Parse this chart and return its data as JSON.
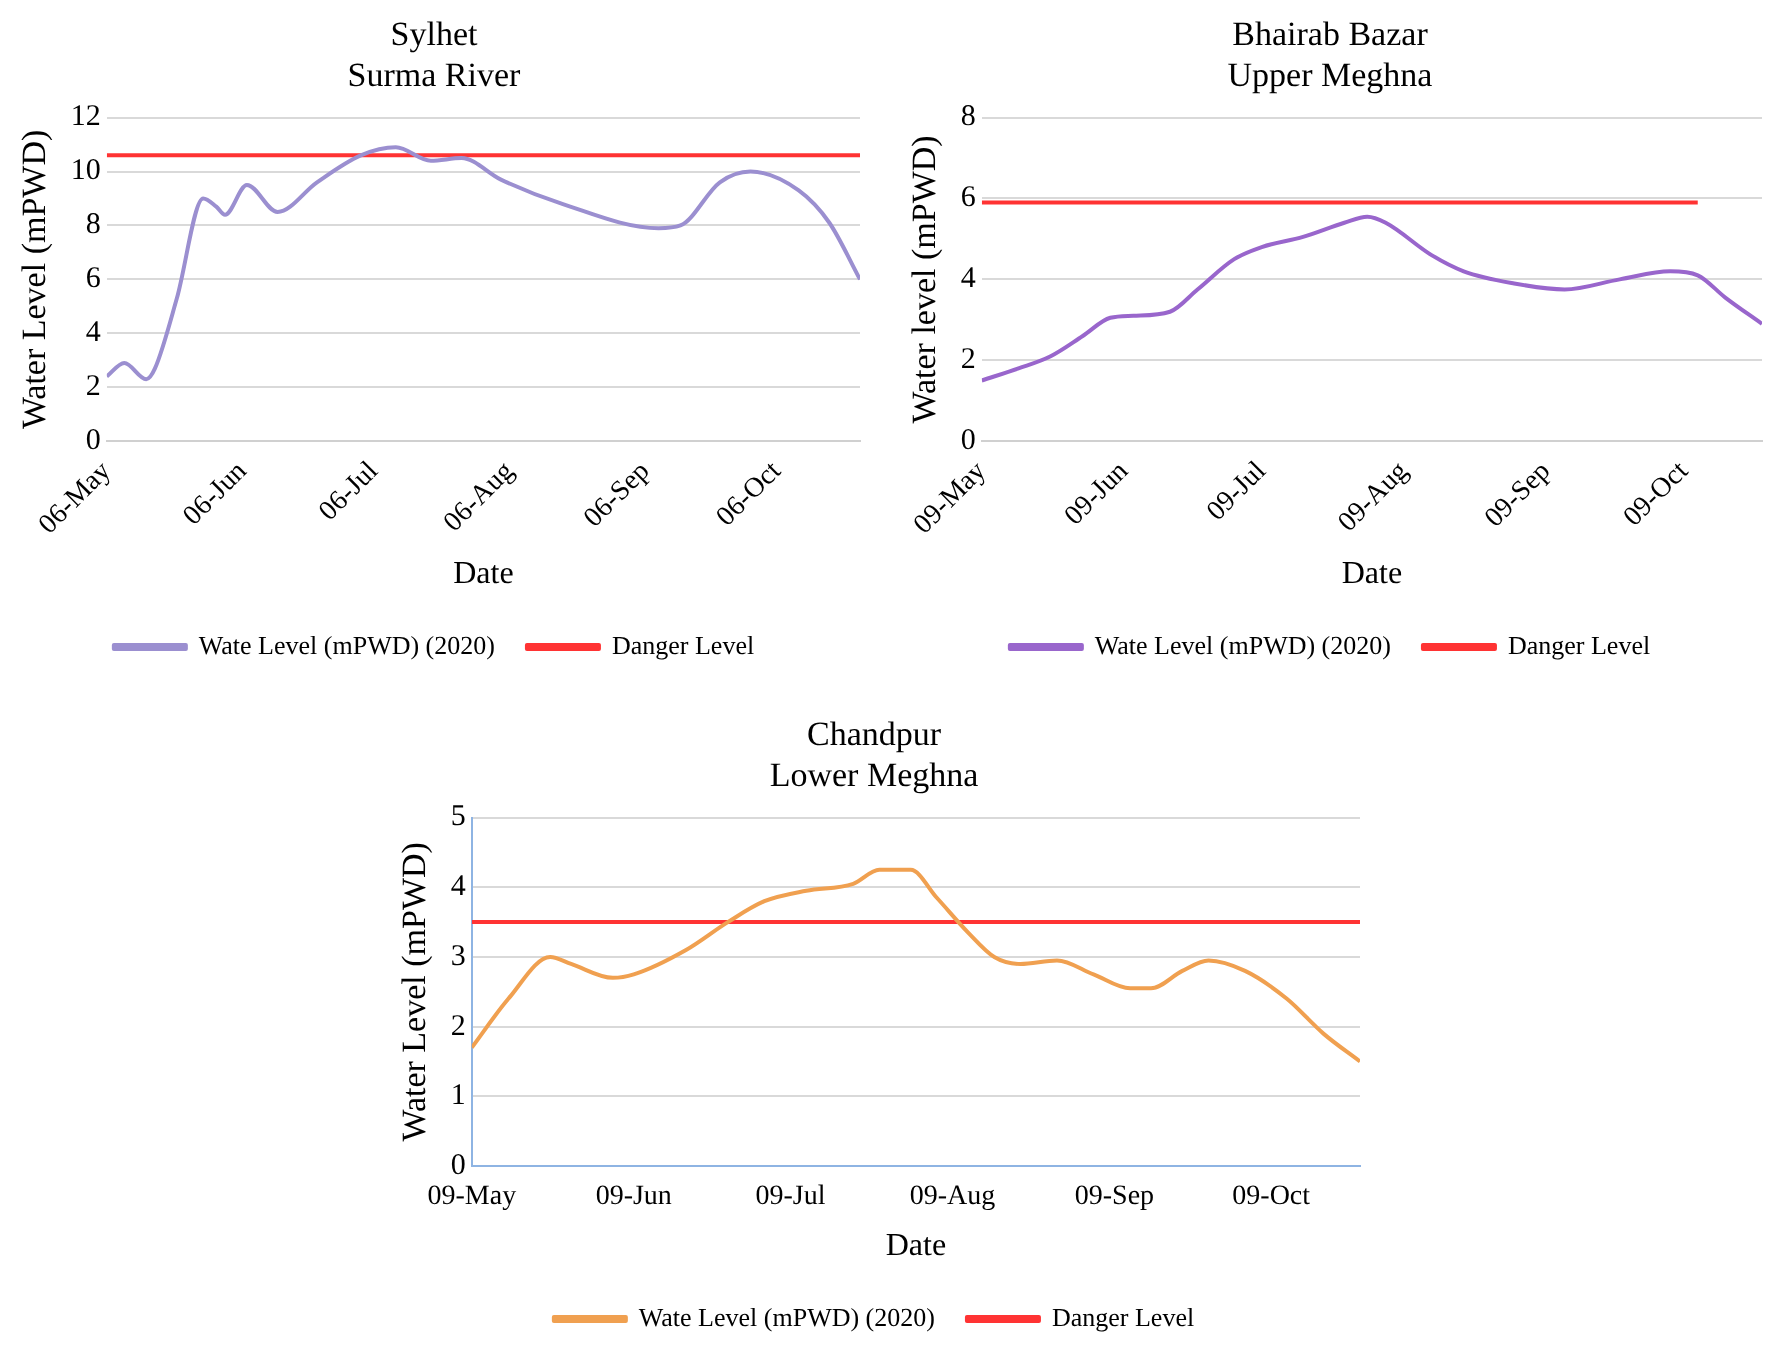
{
  "chart_data": [
    {
      "type": "line",
      "title": "Sylhet",
      "subtitle": "Surma River",
      "xlabel": "Date",
      "ylabel": "Water Level (mPWD)",
      "xlim": [
        "--05-06",
        "--10-25"
      ],
      "xticks": [
        {
          "value": "--05-06",
          "label": "06-May"
        },
        {
          "value": "--06-06",
          "label": "06-Jun"
        },
        {
          "value": "--07-06",
          "label": "06-Jul"
        },
        {
          "value": "--08-06",
          "label": "06-Aug"
        },
        {
          "value": "--09-06",
          "label": "06-Sep"
        },
        {
          "value": "--10-06",
          "label": "06-Oct"
        }
      ],
      "ylim": [
        0,
        12
      ],
      "yticks": [
        0,
        2,
        4,
        6,
        8,
        10,
        12
      ],
      "grid": "y",
      "legend": "bottom",
      "marker": "none",
      "line_style": "solid",
      "series": [
        {
          "name": "Wate Level (mPWD) (2020)",
          "color": "#9b8fd0",
          "x": [
            "--05-06",
            "--05-10",
            "--05-15",
            "--05-17",
            "--05-22",
            "--05-28",
            "--05-31",
            "--06-02",
            "--06-07",
            "--06-14",
            "--06-23",
            "--07-03",
            "--07-11",
            "--07-19",
            "--07-26",
            "--08-04",
            "--08-18",
            "--09-09",
            "--09-14",
            "--09-23",
            "--09-30",
            "--10-11",
            "--10-18",
            "--10-25"
          ],
          "values": [
            2.4,
            2.9,
            2.3,
            2.7,
            5.3,
            9.0,
            8.7,
            8.4,
            9.5,
            8.5,
            9.6,
            10.6,
            10.9,
            10.4,
            10.5,
            9.7,
            8.8,
            7.9,
            8.0,
            9.6,
            10.0,
            9.3,
            8.1,
            6.0
          ]
        },
        {
          "name": "Danger Level",
          "color": "#ff3333",
          "x": [
            "--05-06",
            "--10-25"
          ],
          "values": [
            10.6,
            10.6
          ]
        }
      ]
    },
    {
      "type": "line",
      "title": "Bhairab Bazar",
      "subtitle": "Upper Meghna",
      "xlabel": "Date",
      "ylabel": "Water level (mPWD)",
      "xlim": [
        "--05-09",
        "--10-26"
      ],
      "xticks": [
        {
          "value": "--05-09",
          "label": "09-May"
        },
        {
          "value": "--06-09",
          "label": "09-Jun"
        },
        {
          "value": "--07-09",
          "label": "09-Jul"
        },
        {
          "value": "--08-09",
          "label": "09-Aug"
        },
        {
          "value": "--09-09",
          "label": "09-Sep"
        },
        {
          "value": "--10-09",
          "label": "09-Oct"
        }
      ],
      "ylim": [
        0,
        8
      ],
      "yticks": [
        0,
        2,
        4,
        6,
        8
      ],
      "grid": "y",
      "legend": "bottom",
      "marker": "none",
      "line_style": "solid",
      "series": [
        {
          "name": "Wate Level (mPWD) (2020)",
          "color": "#9966cc",
          "x": [
            "--05-09",
            "--05-17",
            "--05-24",
            "--05-31",
            "--06-06",
            "--06-11",
            "--06-19",
            "--06-25",
            "--07-03",
            "--07-09",
            "--07-18",
            "--07-27",
            "--08-01",
            "--08-05",
            "--08-15",
            "--08-22",
            "--09-02",
            "--09-13",
            "--09-25",
            "--10-06",
            "--10-12",
            "--10-18",
            "--10-26"
          ],
          "values": [
            1.5,
            1.8,
            2.1,
            2.6,
            3.05,
            3.1,
            3.2,
            3.75,
            4.5,
            4.8,
            5.05,
            5.4,
            5.55,
            5.4,
            4.6,
            4.2,
            3.9,
            3.75,
            4.0,
            4.2,
            4.1,
            3.55,
            2.9
          ]
        },
        {
          "name": "Danger Level",
          "color": "#ff3333",
          "x": [
            "--05-09",
            "--10-12"
          ],
          "values": [
            5.9,
            5.9
          ]
        }
      ]
    },
    {
      "type": "line",
      "title": "Chandpur",
      "subtitle": "Lower Meghna",
      "xlabel": "Date",
      "ylabel": "Water Level (mPWD)",
      "xlim": [
        "--05-09",
        "--10-26"
      ],
      "xticks": [
        {
          "value": "--05-09",
          "label": "09-May"
        },
        {
          "value": "--06-09",
          "label": "09-Jun"
        },
        {
          "value": "--07-09",
          "label": "09-Jul"
        },
        {
          "value": "--08-09",
          "label": "09-Aug"
        },
        {
          "value": "--09-09",
          "label": "09-Sep"
        },
        {
          "value": "--10-09",
          "label": "09-Oct"
        }
      ],
      "ylim": [
        0,
        5
      ],
      "yticks": [
        0,
        1,
        2,
        3,
        4,
        5
      ],
      "grid": "y",
      "legend": "bottom",
      "marker": "none",
      "line_style": "solid",
      "series": [
        {
          "name": "Wate Level (mPWD) (2020)",
          "color": "#f0a050",
          "x": [
            "--05-09",
            "--05-16",
            "--05-24",
            "--05-28",
            "--06-05",
            "--06-09",
            "--06-19",
            "--06-27",
            "--07-04",
            "--07-12",
            "--07-21",
            "--07-26",
            "--08-01",
            "--08-06",
            "--08-12",
            "--08-17",
            "--08-22",
            "--08-29",
            "--09-05",
            "--09-12",
            "--09-16",
            "--09-22",
            "--09-27",
            "--10-04",
            "--10-12",
            "--10-19",
            "--10-26"
          ],
          "values": [
            1.7,
            2.4,
            3.0,
            2.9,
            2.7,
            2.75,
            3.1,
            3.5,
            3.8,
            3.95,
            4.05,
            4.25,
            4.25,
            3.85,
            3.35,
            3.0,
            2.9,
            2.95,
            2.75,
            2.55,
            2.55,
            2.8,
            2.95,
            2.8,
            2.4,
            1.9,
            1.5
          ]
        },
        {
          "name": "Danger Level",
          "color": "#ff3333",
          "x": [
            "--05-09",
            "--10-26"
          ],
          "values": [
            3.5,
            3.5
          ]
        }
      ]
    }
  ]
}
